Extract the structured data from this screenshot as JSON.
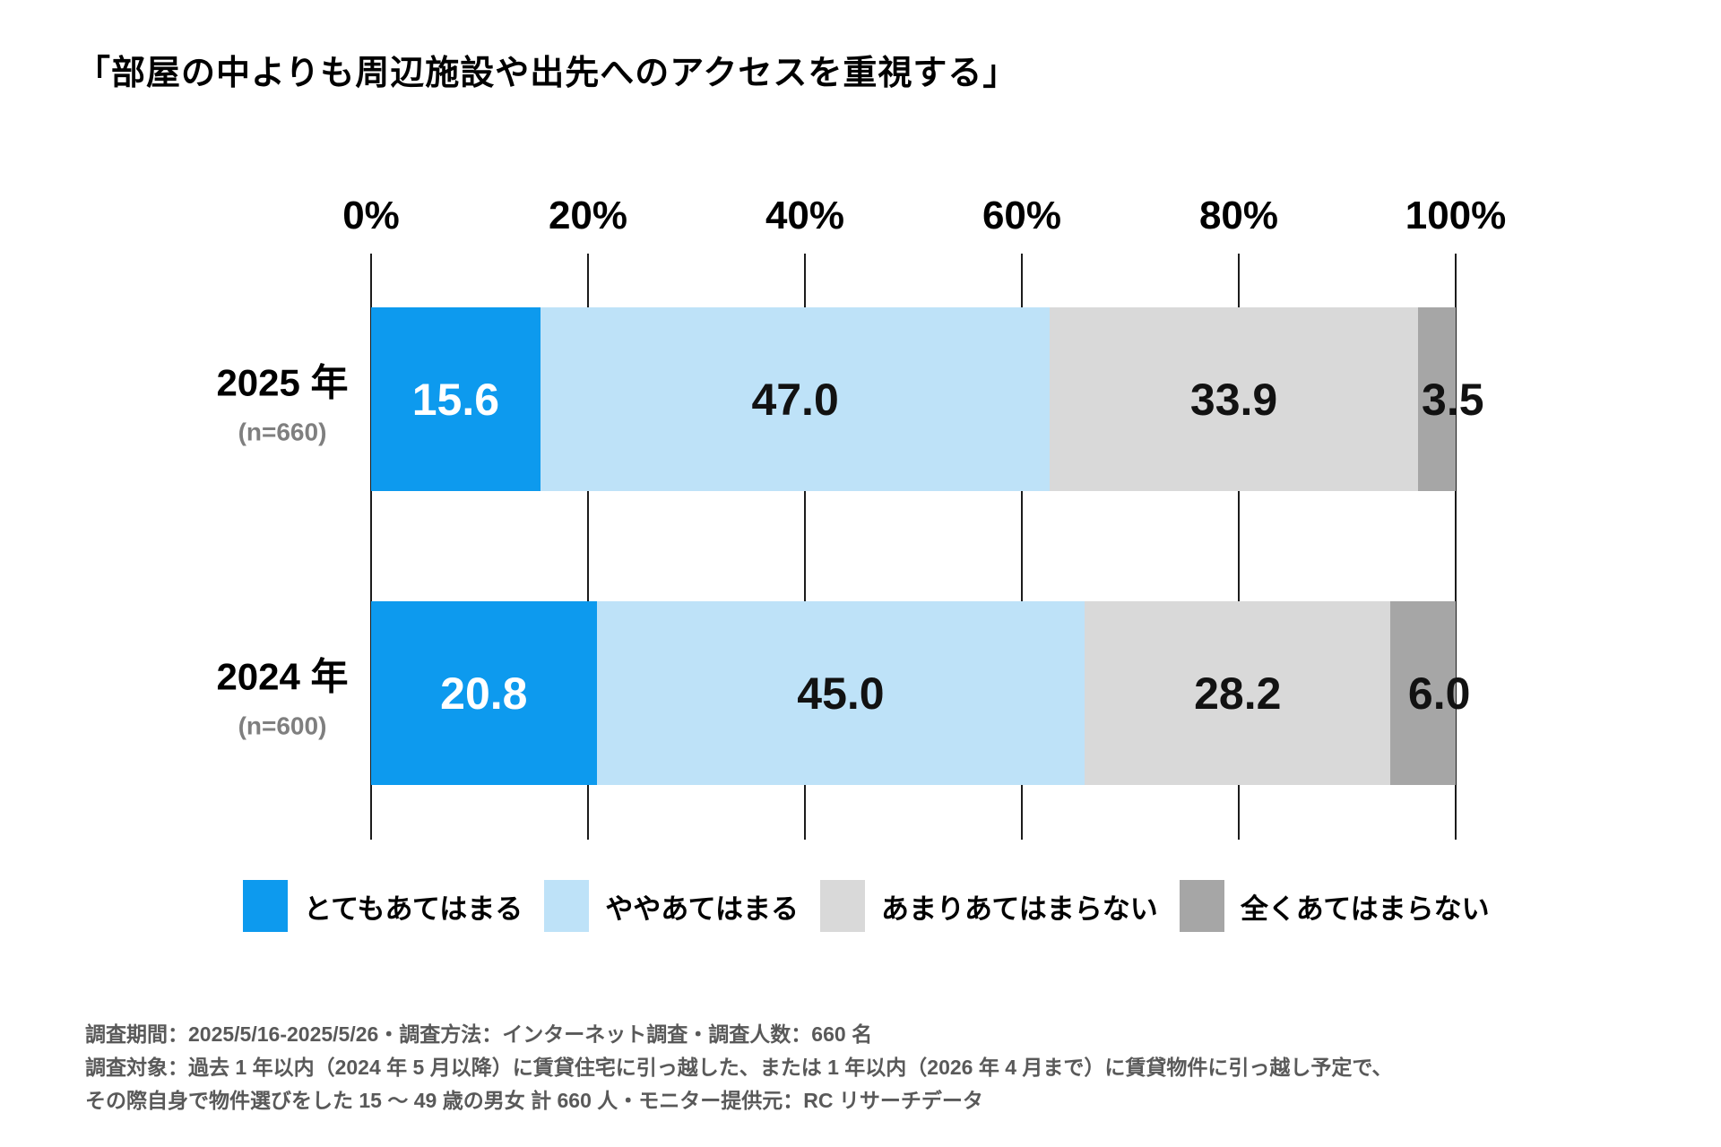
{
  "title": "「部屋の中よりも周辺施設や出先へのアクセスを重視する」",
  "chart_data": {
    "type": "bar",
    "stacked": true,
    "orientation": "horizontal",
    "title": "「部屋の中よりも周辺施設や出先へのアクセスを重視する」",
    "categories": [
      "2025 年",
      "2024 年"
    ],
    "category_sublabels": [
      "(n=660)",
      "(n=600)"
    ],
    "series": [
      {
        "name": "とてもあてはまる",
        "color": "#0D9AEE",
        "values": [
          15.6,
          20.8
        ]
      },
      {
        "name": "ややあてはまる",
        "color": "#BEE2F8",
        "values": [
          47.0,
          45.0
        ]
      },
      {
        "name": "あまりあてはまらない",
        "color": "#D9D9D9",
        "values": [
          33.9,
          28.2
        ]
      },
      {
        "name": "全くあてはまらない",
        "color": "#A6A6A6",
        "values": [
          3.5,
          6.0
        ]
      }
    ],
    "xlim": [
      0,
      100
    ],
    "x_ticks": [
      "0%",
      "20%",
      "40%",
      "60%",
      "80%",
      "100%"
    ],
    "grid": true,
    "legend_position": "bottom",
    "value_labels": true,
    "value_label_decimals": 1
  },
  "footer": {
    "lines": [
      "調査期間：2025/5/16-2025/5/26・調査方法：インターネット調査・調査人数：660 名",
      "調査対象：過去 1 年以内（2024 年 5 月以降）に賃貸住宅に引っ越した、または 1 年以内（2026 年 4 月まで）に賃貸物件に引っ越し予定で、",
      "その際自身で物件選びをした 15 ～ 49 歳の男女 計 660 人・モニター提供元：RC リサーチデータ"
    ]
  }
}
